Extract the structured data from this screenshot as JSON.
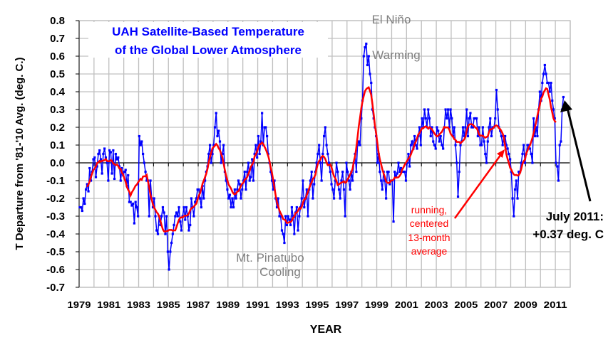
{
  "chart_data": {
    "type": "line",
    "title": [
      "UAH Satellite-Based Temperature",
      "of the Global Lower Atmosphere"
    ],
    "xlabel": "YEAR",
    "ylabel": "T Departure from '81-'10 Avg. (deg. C.)",
    "xlim": [
      1979,
      2012
    ],
    "ylim": [
      -0.7,
      0.8
    ],
    "grid": true,
    "x_ticks": [
      "1979",
      "1981",
      "1983",
      "1985",
      "1987",
      "1989",
      "1991",
      "1993",
      "1995",
      "1997",
      "1999",
      "2001",
      "2003",
      "2005",
      "2007",
      "2009",
      "2011"
    ],
    "y_ticks": [
      "0.8",
      "0.7",
      "0.6",
      "0.5",
      "0.4",
      "0.3",
      "0.2",
      "0.1",
      "0.0",
      "-0.1",
      "-0.2",
      "-0.3",
      "-0.4",
      "-0.5",
      "-0.6",
      "-0.7"
    ],
    "start": "1979-01",
    "series": [
      {
        "type": "monthly",
        "color": "#0000ff",
        "values": [
          -0.25,
          -0.25,
          -0.27,
          -0.2,
          -0.23,
          -0.15,
          -0.12,
          -0.16,
          -0.03,
          -0.1,
          -0.05,
          0.02,
          0.03,
          -0.08,
          -0.02,
          0.05,
          0.07,
          0.02,
          -0.06,
          0.05,
          0.08,
          0.03,
          0.0,
          -0.1,
          0.07,
          0.06,
          -0.06,
          0.07,
          -0.09,
          0.05,
          0.02,
          0.03,
          -0.02,
          -0.1,
          -0.03,
          -0.07,
          -0.05,
          -0.04,
          -0.13,
          -0.07,
          -0.22,
          -0.22,
          -0.24,
          -0.23,
          -0.34,
          -0.22,
          -0.25,
          -0.3,
          0.15,
          0.1,
          0.12,
          0.05,
          0.0,
          -0.05,
          -0.1,
          -0.1,
          -0.3,
          -0.1,
          -0.2,
          -0.25,
          -0.2,
          -0.3,
          -0.38,
          -0.4,
          -0.3,
          -0.35,
          -0.3,
          -0.25,
          -0.28,
          -0.4,
          -0.3,
          -0.5,
          -0.6,
          -0.5,
          -0.45,
          -0.4,
          -0.35,
          -0.3,
          -0.28,
          -0.3,
          -0.25,
          -0.33,
          -0.38,
          -0.3,
          -0.25,
          -0.32,
          -0.25,
          -0.3,
          -0.38,
          -0.35,
          -0.2,
          -0.25,
          -0.3,
          -0.22,
          -0.2,
          -0.15,
          -0.15,
          -0.2,
          -0.25,
          -0.13,
          -0.2,
          -0.1,
          -0.05,
          -0.02,
          0.05,
          0.1,
          0.0,
          0.05,
          0.1,
          0.2,
          0.28,
          0.15,
          0.18,
          0.12,
          0.0,
          0.05,
          0.1,
          -0.05,
          -0.1,
          -0.15,
          -0.2,
          -0.18,
          -0.25,
          -0.2,
          -0.25,
          -0.15,
          -0.2,
          -0.15,
          -0.1,
          -0.12,
          -0.2,
          -0.15,
          -0.1,
          -0.05,
          -0.15,
          -0.05,
          0.0,
          -0.1,
          -0.08,
          0.02,
          -0.1,
          0.05,
          0.1,
          0.03,
          0.15,
          0.05,
          0.12,
          0.28,
          0.1,
          0.2,
          0.2,
          0.15,
          0.05,
          0.0,
          -0.05,
          -0.1,
          -0.15,
          -0.1,
          -0.2,
          -0.25,
          -0.2,
          -0.3,
          -0.3,
          -0.38,
          -0.4,
          -0.45,
          -0.3,
          -0.35,
          -0.3,
          -0.32,
          -0.35,
          -0.25,
          -0.3,
          -0.4,
          -0.28,
          -0.25,
          -0.38,
          -0.3,
          -0.25,
          -0.2,
          -0.1,
          -0.25,
          -0.2,
          -0.15,
          -0.3,
          -0.15,
          -0.1,
          -0.05,
          -0.2,
          -0.12,
          -0.05,
          0.0,
          0.05,
          0.1,
          0.0,
          -0.1,
          0.05,
          0.15,
          0.2,
          0.1,
          0.05,
          0.0,
          -0.05,
          -0.12,
          -0.15,
          -0.2,
          -0.1,
          0.0,
          -0.05,
          -0.15,
          -0.2,
          -0.1,
          -0.05,
          -0.15,
          -0.3,
          0.0,
          -0.05,
          -0.1,
          -0.15,
          -0.05,
          -0.1,
          0.0,
          0.05,
          -0.05,
          0.1,
          0.12,
          0.1,
          0.25,
          0.35,
          0.6,
          0.65,
          0.67,
          0.55,
          0.6,
          0.5,
          0.45,
          0.3,
          0.25,
          0.2,
          0.15,
          0.0,
          0.05,
          -0.05,
          -0.1,
          -0.15,
          -0.05,
          -0.1,
          -0.2,
          -0.05,
          -0.05,
          -0.12,
          -0.1,
          -0.1,
          -0.33,
          -0.05,
          -0.08,
          -0.06,
          0.0,
          -0.05,
          -0.03,
          -0.05,
          -0.05,
          -0.05,
          -0.1,
          0.0,
          0.05,
          -0.02,
          0.1,
          0.12,
          0.08,
          0.15,
          0.1,
          0.08,
          0.15,
          0.2,
          0.1,
          0.25,
          0.2,
          0.3,
          0.25,
          0.2,
          0.3,
          0.25,
          0.15,
          0.2,
          0.12,
          0.1,
          0.08,
          0.2,
          0.18,
          0.12,
          0.15,
          0.1,
          0.08,
          0.2,
          0.3,
          0.25,
          0.3,
          0.2,
          0.3,
          0.25,
          0.15,
          0.2,
          0.1,
          0.0,
          -0.19,
          -0.05,
          0.1,
          0.12,
          0.2,
          0.15,
          0.2,
          0.3,
          0.15,
          0.25,
          0.28,
          0.2,
          0.2,
          0.25,
          0.25,
          0.25,
          0.15,
          0.2,
          0.1,
          0.1,
          0.2,
          0.12,
          0.05,
          0.0,
          0.12,
          0.2,
          0.25,
          0.15,
          0.2,
          0.2,
          0.25,
          0.41,
          0.3,
          0.2,
          0.18,
          0.15,
          0.1,
          0.15,
          0.15,
          0.1,
          0.08,
          0.05,
          0.02,
          -0.05,
          -0.2,
          -0.3,
          -0.15,
          -0.1,
          -0.2,
          -0.05,
          -0.05,
          0.0,
          0.05,
          0.1,
          0.0,
          0.05,
          0.1,
          0.1,
          0.08,
          0.05,
          0.0,
          0.25,
          0.15,
          0.2,
          0.15,
          0.3,
          0.4,
          0.35,
          0.45,
          0.5,
          0.55,
          0.5,
          0.45,
          0.45,
          0.4,
          0.45,
          0.35,
          0.3,
          0.25,
          0.0,
          -0.02,
          -0.1,
          0.1,
          0.12,
          0.3,
          0.37
        ]
      },
      {
        "type": "running centered 13-month average",
        "color": "#ff0000"
      }
    ],
    "annotations": {
      "el_nino": [
        "El Niño",
        "Warming"
      ],
      "pinatubo": [
        "Mt. Pinatubo",
        "Cooling"
      ],
      "running_avg": [
        "running,",
        "centered",
        "13-month",
        "average"
      ],
      "latest": [
        "July 2011:",
        "+0.37 deg. C"
      ]
    },
    "colors": {
      "title": "#0000ff",
      "annotation_gray": "#808080",
      "running_label": "#ff0000",
      "grid": "#c0c0c0"
    }
  }
}
